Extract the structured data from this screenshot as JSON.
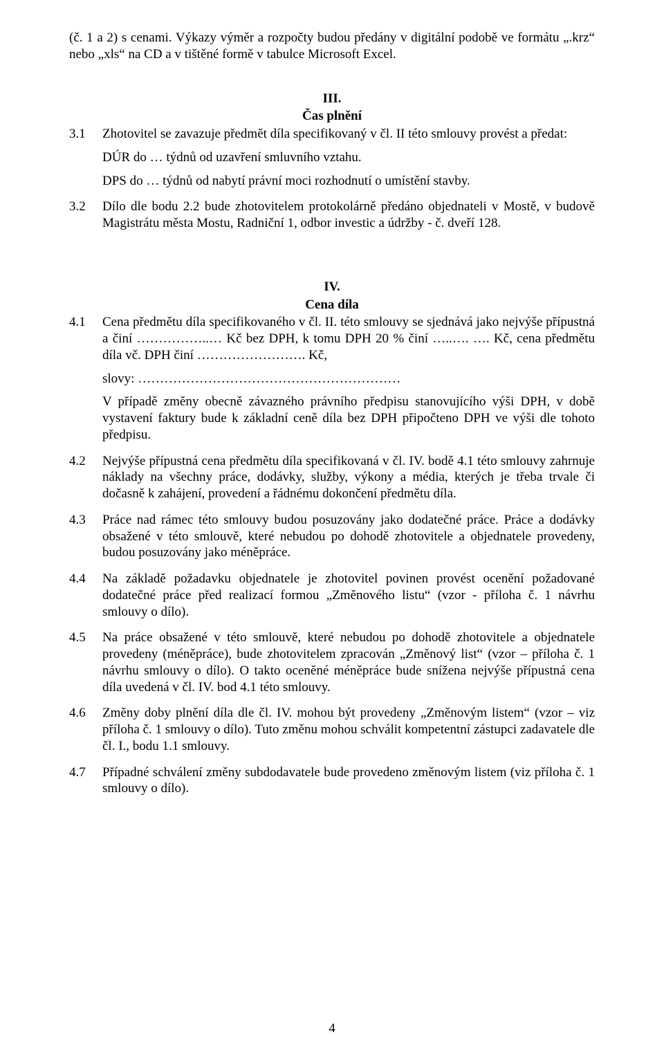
{
  "intro": "(č. 1 a 2) s cenami. Výkazy výměr a rozpočty budou předány v digitální podobě ve formátu „.krz“ nebo „xls“ na CD a v tištěné formě v tabulce Microsoft Excel.",
  "section3": {
    "num": "III.",
    "title": "Čas plnění",
    "c31": {
      "num": "3.1",
      "line1": "Zhotovitel se zavazuje předmět díla specifikovaný v čl. II této smlouvy provést a předat:",
      "line2": "DÚR do … týdnů od uzavření smluvního vztahu.",
      "line3": "DPS do … týdnů od nabytí právní moci rozhodnutí o umístění stavby."
    },
    "c32": {
      "num": "3.2",
      "text": "Dílo dle bodu 2.2 bude zhotovitelem protokolárně předáno objednateli v Mostě, v budově Magistrátu města Mostu, Radniční 1, odbor investic a údržby - č. dveří 128."
    }
  },
  "section4": {
    "num": "IV.",
    "title": "Cena díla",
    "c41": {
      "num": "4.1",
      "p1": "Cena předmětu díla specifikovaného v čl. II. této smlouvy se sjednává jako nejvýše přípustná a činí ……………..… Kč bez DPH, k tomu DPH 20 % činí …..…. …. Kč, cena předmětu díla vč. DPH činí ……………………. Kč,",
      "p2": "slovy: ……………………………………………………",
      "p3": "V případě změny obecně závazného právního předpisu stanovujícího výši DPH, v době vystavení faktury bude k základní ceně díla bez DPH připočteno DPH ve výši dle tohoto předpisu."
    },
    "c42": {
      "num": "4.2",
      "text": "Nejvýše přípustná cena předmětu díla specifikovaná v čl. IV. bodě 4.1 této smlouvy zahrnuje náklady na všechny práce, dodávky, služby, výkony a média, kterých je třeba trvale či dočasně k zahájení, provedení a řádnému dokončení předmětu díla."
    },
    "c43": {
      "num": "4.3",
      "text": "Práce nad rámec této smlouvy budou posuzovány jako dodatečné práce. Práce a dodávky obsažené v této smlouvě, které nebudou po dohodě zhotovitele a objednatele provedeny, budou posuzovány jako méněpráce."
    },
    "c44": {
      "num": "4.4",
      "text": "Na základě požadavku objednatele je zhotovitel povinen provést ocenění požadované dodatečné práce před realizací formou „Změnového listu“ (vzor - příloha č. 1 návrhu smlouvy o dílo)."
    },
    "c45": {
      "num": "4.5",
      "text": "Na práce obsažené v této smlouvě, které nebudou po dohodě zhotovitele a objednatele provedeny (méněpráce), bude zhotovitelem zpracován „Změnový list“ (vzor – příloha č. 1 návrhu smlouvy o dílo). O takto oceněné méněpráce bude snížena nejvýše přípustná cena díla uvedená v čl. IV. bod 4.1 této smlouvy."
    },
    "c46": {
      "num": "4.6",
      "text": "Změny doby plnění díla dle čl. IV. mohou být provedeny „Změnovým listem“ (vzor – viz příloha č. 1 smlouvy o dílo). Tuto změnu mohou schválit kompetentní zástupci zadavatele dle čl. I., bodu 1.1 smlouvy."
    },
    "c47": {
      "num": "4.7",
      "text": "Případné schválení změny subdodavatele bude provedeno změnovým listem (viz příloha č. 1 smlouvy o dílo)."
    }
  },
  "pageNumber": "4"
}
